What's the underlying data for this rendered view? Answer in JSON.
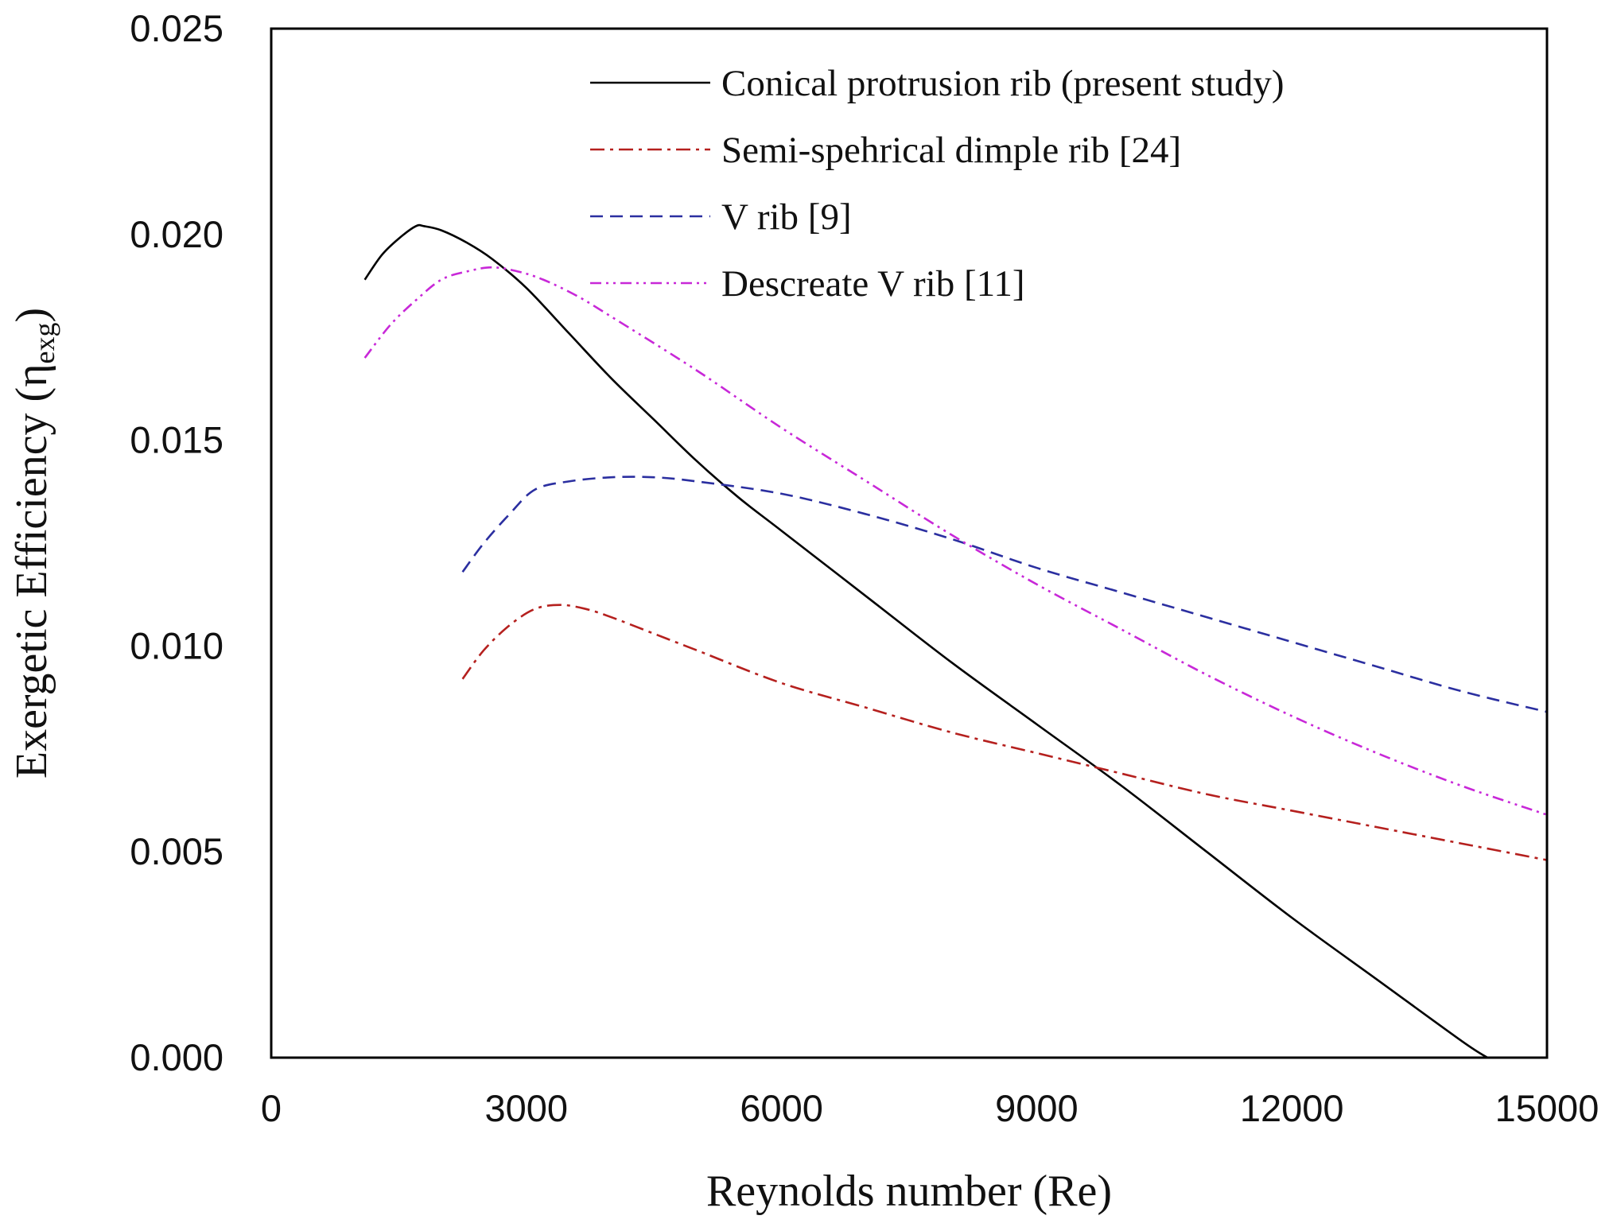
{
  "chart_data": {
    "type": "line",
    "title": "",
    "xlabel": "Reynolds number (Re)",
    "ylabel": {
      "main": "Exergetic Efficiency (η",
      "subscript": "exg",
      "close": ")"
    },
    "xlim": [
      0,
      15000
    ],
    "ylim": [
      0,
      0.025
    ],
    "x_ticks": [
      0,
      3000,
      6000,
      9000,
      12000,
      15000
    ],
    "x_tick_labels": [
      "0",
      "3000",
      "6000",
      "9000",
      "12000",
      "15000"
    ],
    "y_ticks": [
      0,
      0.005,
      0.01,
      0.015,
      0.02,
      0.025
    ],
    "y_tick_labels": [
      "0.000",
      "0.005",
      "0.010",
      "0.015",
      "0.020",
      "0.025"
    ],
    "grid": false,
    "legend_position": "top-right",
    "series": [
      {
        "name": "Conical protrusion rib (present study)",
        "color": "#000000",
        "dash": "solid",
        "x": [
          1100,
          1300,
          1500,
          1700,
          1800,
          2000,
          2300,
          2600,
          3000,
          3500,
          4000,
          4500,
          5000,
          5500,
          6000,
          7000,
          8000,
          9000,
          10000,
          11000,
          12000,
          13000,
          14000,
          14300
        ],
        "y": [
          0.0189,
          0.0195,
          0.0199,
          0.0202,
          0.0202,
          0.0201,
          0.0198,
          0.0194,
          0.0187,
          0.0176,
          0.0165,
          0.0155,
          0.0145,
          0.0136,
          0.0128,
          0.0112,
          0.0096,
          0.0081,
          0.0066,
          0.005,
          0.0034,
          0.0019,
          0.0004,
          0.0
        ]
      },
      {
        "name": "Semi-spehrical dimple rib [24]",
        "color": "#b5201e",
        "dash": "dashdot",
        "x": [
          2250,
          2500,
          2800,
          3100,
          3400,
          3700,
          4000,
          4500,
          5000,
          6000,
          7000,
          8000,
          9000,
          10000,
          11000,
          12000,
          13000,
          14000,
          15000
        ],
        "y": [
          0.0092,
          0.0099,
          0.0105,
          0.0109,
          0.011,
          0.0109,
          0.0107,
          0.0103,
          0.0099,
          0.0091,
          0.0085,
          0.0079,
          0.0074,
          0.0069,
          0.0064,
          0.006,
          0.0056,
          0.0052,
          0.0048
        ]
      },
      {
        "name": "V rib [9]",
        "color": "#2b2fa0",
        "dash": "dashed",
        "x": [
          2250,
          2500,
          2800,
          3100,
          3500,
          4000,
          4500,
          5000,
          6000,
          7000,
          8000,
          9000,
          10000,
          11000,
          12000,
          13000,
          14000,
          15000
        ],
        "y": [
          0.0118,
          0.0125,
          0.0132,
          0.0138,
          0.014,
          0.0141,
          0.0141,
          0.014,
          0.0137,
          0.0132,
          0.0126,
          0.0119,
          0.0113,
          0.0107,
          0.0101,
          0.0095,
          0.0089,
          0.0084
        ]
      },
      {
        "name": "Descreate V rib [11]",
        "color": "#c828d8",
        "dash": "dashdotdot",
        "x": [
          1100,
          1400,
          1700,
          2000,
          2300,
          2600,
          2900,
          3200,
          3600,
          4000,
          5000,
          6000,
          7000,
          8000,
          9000,
          10000,
          11000,
          12000,
          13000,
          14000,
          15000
        ],
        "y": [
          0.017,
          0.0178,
          0.0184,
          0.0189,
          0.0191,
          0.0192,
          0.0191,
          0.0189,
          0.0185,
          0.018,
          0.0167,
          0.0153,
          0.014,
          0.0127,
          0.0115,
          0.0104,
          0.0093,
          0.0083,
          0.0074,
          0.0066,
          0.0059
        ]
      }
    ]
  }
}
